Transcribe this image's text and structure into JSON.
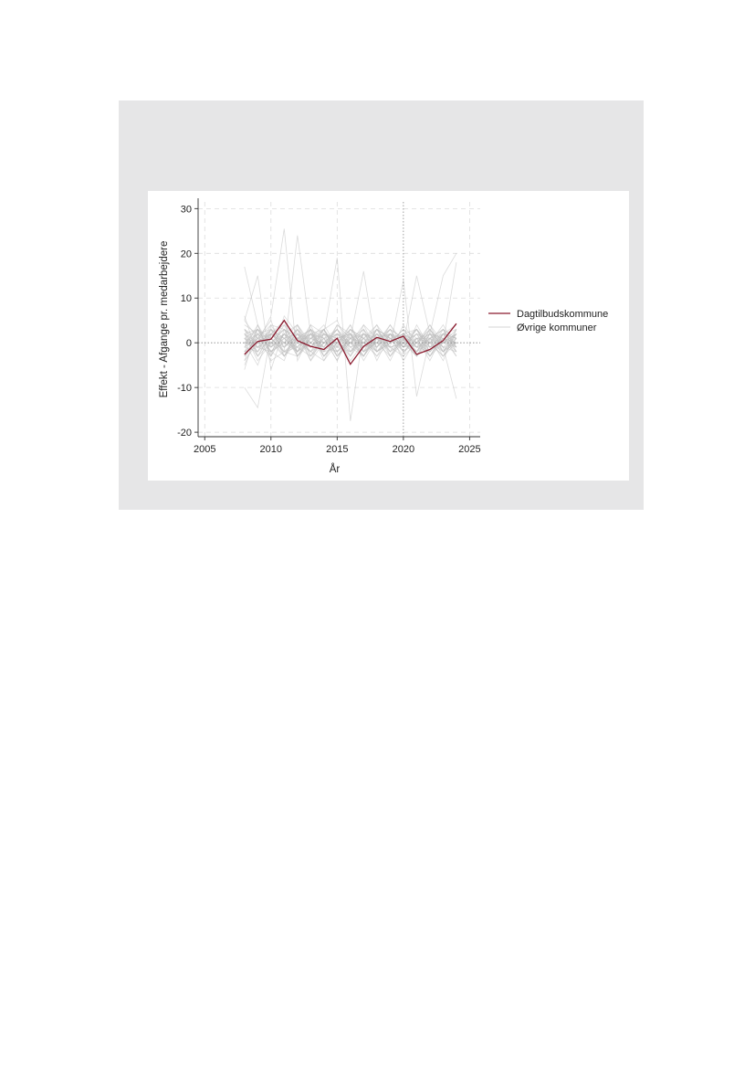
{
  "chart_data": {
    "type": "line",
    "xlabel": "År",
    "ylabel": "Effekt - Afgange pr. medarbejdere",
    "xlim": [
      2004.5,
      2025.8
    ],
    "ylim": [
      -21,
      31.5
    ],
    "x_ticks": [
      2005,
      2010,
      2015,
      2020,
      2025
    ],
    "y_ticks": [
      -20,
      -10,
      0,
      10,
      20,
      30
    ],
    "grid": "dashed light gray",
    "reference_lines": {
      "horizontal_y": 0,
      "vertical_x": 2020
    },
    "legend": {
      "placement": "right",
      "entries": [
        "Dagtilbudskommune",
        "Øvrige kommuner"
      ]
    },
    "colors": {
      "highlight": "#8b1a2e",
      "others": "#bdbdbd",
      "grid": "#dcdcdc",
      "reference": "#888888",
      "frame": "#e6e6e7"
    },
    "x": [
      2008,
      2009,
      2010,
      2011,
      2012,
      2013,
      2014,
      2015,
      2016,
      2017,
      2018,
      2019,
      2020,
      2021,
      2022,
      2023,
      2024
    ],
    "series": [
      {
        "name": "Dagtilbudskommune",
        "values": [
          -2.6,
          0.3,
          0.8,
          5.0,
          0.5,
          -0.8,
          -1.5,
          1.0,
          -4.8,
          -0.8,
          1.2,
          0.3,
          1.5,
          -2.6,
          -1.5,
          0.5,
          4.3
        ]
      },
      {
        "name": "Øvrige kommuner",
        "values_by_municipality": [
          [
            17,
            4,
            -3,
            6,
            2,
            -1,
            3,
            5,
            -2,
            1,
            4,
            0,
            2,
            3,
            -1,
            2,
            1
          ],
          [
            -10,
            -14.5,
            2,
            4,
            -2,
            3,
            1,
            -4,
            2,
            -3,
            1,
            2,
            -1,
            0,
            3,
            -2,
            0
          ],
          [
            5,
            15,
            -6,
            3,
            1,
            2,
            -3,
            0,
            4,
            -2,
            0,
            3,
            1,
            -2,
            2,
            1,
            -1
          ],
          [
            2,
            0,
            6,
            25.5,
            -4,
            2,
            1,
            -3,
            0,
            2,
            -1,
            4,
            0,
            1,
            -3,
            2,
            3
          ],
          [
            -4,
            3,
            1,
            -2,
            24,
            2,
            -3,
            1,
            0,
            -2,
            3,
            1,
            -1,
            2,
            0,
            -2,
            1
          ],
          [
            1,
            -2,
            3,
            0,
            -1,
            4,
            2,
            19,
            -17.5,
            3,
            -1,
            2,
            0,
            -3,
            1,
            0,
            2
          ],
          [
            0,
            3,
            -2,
            1,
            4,
            -3,
            0,
            2,
            1,
            16,
            -2,
            0,
            3,
            1,
            -4,
            2,
            0
          ],
          [
            -3,
            1,
            4,
            -1,
            2,
            0,
            3,
            -2,
            1,
            0,
            2,
            -1,
            14,
            -12,
            1,
            3,
            -2
          ],
          [
            2,
            -1,
            0,
            3,
            -2,
            1,
            2,
            0,
            -3,
            4,
            1,
            -2,
            0,
            15,
            2,
            -1,
            -12.5
          ],
          [
            -2,
            0,
            2,
            -1,
            1,
            3,
            -4,
            2,
            0,
            -1,
            3,
            1,
            -2,
            0,
            2,
            15,
            20
          ],
          [
            3,
            1,
            -1,
            2,
            0,
            -2,
            1,
            3,
            -1,
            0,
            -3,
            2,
            1,
            -1,
            4,
            0,
            18
          ],
          [
            -1,
            2,
            3,
            -3,
            1,
            0,
            -2,
            1,
            2,
            -1,
            0,
            3,
            -2,
            1,
            0,
            -3,
            2
          ],
          [
            1,
            -3,
            0,
            2,
            -1,
            2,
            0,
            -1,
            3,
            1,
            -2,
            0,
            2,
            -1,
            1,
            2,
            -1
          ],
          [
            -2,
            1,
            2,
            0,
            3,
            -1,
            1,
            0,
            -2,
            2,
            1,
            -1,
            0,
            3,
            -2,
            1,
            0
          ],
          [
            0,
            2,
            -1,
            1,
            -2,
            0,
            3,
            -3,
            1,
            0,
            2,
            -2,
            1,
            0,
            -1,
            2,
            1
          ],
          [
            3,
            -1,
            1,
            -2,
            0,
            2,
            -1,
            2,
            0,
            -3,
            1,
            2,
            -1,
            0,
            2,
            -2,
            3
          ],
          [
            -4,
            0,
            2,
            1,
            -1,
            -3,
            2,
            0,
            1,
            2,
            -2,
            0,
            3,
            -1,
            0,
            1,
            -3
          ],
          [
            2,
            3,
            -2,
            0,
            1,
            1,
            -1,
            -2,
            2,
            0,
            3,
            -1,
            0,
            2,
            -3,
            0,
            1
          ],
          [
            -1,
            -2,
            1,
            3,
            0,
            -1,
            2,
            1,
            -3,
            1,
            0,
            2,
            -2,
            1,
            1,
            -1,
            0
          ],
          [
            1,
            0,
            -3,
            2,
            -2,
            3,
            0,
            1,
            2,
            -2,
            1,
            0,
            1,
            -3,
            2,
            1,
            -2
          ],
          [
            6,
            -3,
            2,
            -1,
            3,
            0,
            -2,
            4,
            1,
            -1,
            2,
            -3,
            0,
            2,
            1,
            -4,
            3
          ],
          [
            -6,
            4,
            -1,
            2,
            -3,
            1,
            3,
            -2,
            0,
            3,
            -4,
            2,
            1,
            -2,
            3,
            0,
            -1
          ],
          [
            0,
            -5,
            3,
            1,
            2,
            -4,
            0,
            2,
            -1,
            1,
            3,
            -2,
            4,
            0,
            -3,
            2,
            1
          ],
          [
            4,
            2,
            -4,
            -2,
            1,
            3,
            -3,
            0,
            2,
            -4,
            1,
            3,
            -2,
            1,
            2,
            -3,
            0
          ],
          [
            -3,
            1,
            5,
            -3,
            0,
            2,
            1,
            -4,
            3,
            0,
            -2,
            1,
            2,
            -3,
            0,
            3,
            -2
          ],
          [
            2,
            -4,
            0,
            3,
            -3,
            1,
            4,
            -1,
            -2,
            2,
            0,
            -3,
            1,
            3,
            -1,
            0,
            2
          ],
          [
            1,
            3,
            -2,
            -4,
            4,
            0,
            -1,
            3,
            0,
            -3,
            2,
            1,
            -3,
            0,
            4,
            -2,
            1
          ],
          [
            -2,
            -1,
            3,
            1,
            -2,
            4,
            -3,
            1,
            2,
            1,
            -3,
            0,
            2,
            -2,
            1,
            3,
            -1
          ],
          [
            3,
            0,
            1,
            -3,
            2,
            -2,
            0,
            3,
            -3,
            2,
            0,
            4,
            -1,
            2,
            -2,
            1,
            0
          ],
          [
            -1,
            4,
            -3,
            2,
            0,
            3,
            -2,
            -1,
            4,
            -2,
            3,
            -1,
            0,
            -2,
            3,
            -1,
            2
          ],
          [
            0,
            -1,
            2,
            5,
            -3,
            0,
            2,
            -3,
            1,
            3,
            -1,
            2,
            -4,
            1,
            0,
            2,
            -3
          ],
          [
            5,
            1,
            -2,
            0,
            3,
            -3,
            1,
            2,
            -2,
            0,
            4,
            -3,
            2,
            0,
            -2,
            3,
            1
          ],
          [
            -5,
            2,
            1,
            -2,
            -1,
            2,
            3,
            -1,
            0,
            4,
            -2,
            1,
            0,
            -3,
            2,
            0,
            3
          ],
          [
            2,
            -2,
            4,
            3,
            1,
            -2,
            -4,
            0,
            3,
            -1,
            1,
            2,
            -1,
            3,
            -3,
            1,
            0
          ],
          [
            -2,
            3,
            0,
            -1,
            2,
            1,
            0,
            -2,
            1,
            -3,
            2,
            0,
            3,
            -1,
            1,
            -2,
            2
          ],
          [
            1,
            -1,
            -2,
            2,
            4,
            -1,
            2,
            1,
            -4,
            0,
            -1,
            3,
            1,
            -2,
            0,
            4,
            -1
          ],
          [
            0,
            0,
            3,
            -2,
            -3,
            2,
            -1,
            4,
            2,
            -2,
            0,
            -1,
            -3,
            4,
            -1,
            0,
            2
          ],
          [
            -3,
            2,
            -1,
            4,
            1,
            -2,
            3,
            -3,
            0,
            2,
            1,
            -4,
            2,
            0,
            3,
            -1,
            -2
          ],
          [
            3,
            -3,
            2,
            0,
            -2,
            1,
            0,
            3,
            -1,
            -3,
            3,
            1,
            0,
            -1,
            -2,
            2,
            4
          ],
          [
            -1,
            1,
            0,
            -3,
            3,
            -4,
            2,
            0,
            3,
            1,
            -2,
            2,
            -1,
            3,
            0,
            -3,
            1
          ]
        ]
      }
    ]
  }
}
